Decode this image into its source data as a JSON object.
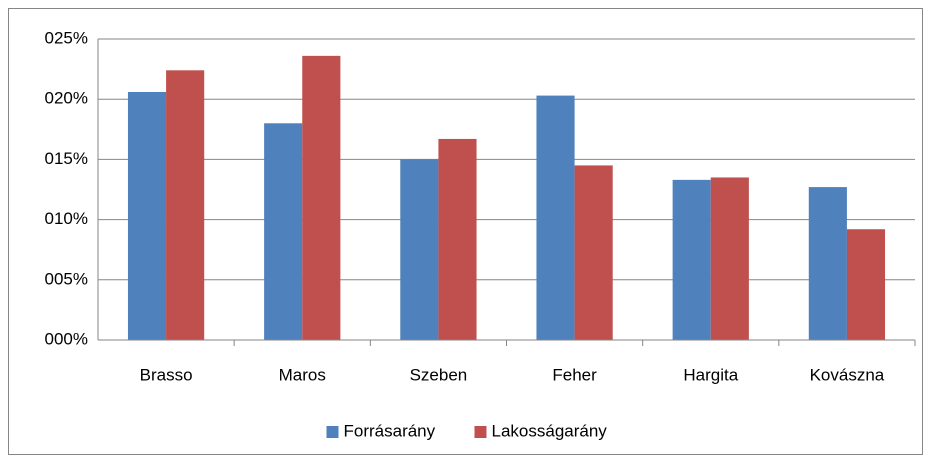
{
  "chart_data": {
    "type": "bar",
    "categories": [
      "Brasso",
      "Maros",
      "Szeben",
      "Feher",
      "Hargita",
      "Kovászna"
    ],
    "series": [
      {
        "name": "Forrásarány",
        "color": "#4f81bd",
        "values": [
          20.6,
          18.0,
          15.0,
          20.3,
          13.3,
          12.7
        ]
      },
      {
        "name": "Lakosságarány",
        "color": "#c0504d",
        "values": [
          22.4,
          23.6,
          16.7,
          14.5,
          13.5,
          9.2
        ]
      }
    ],
    "ylim": [
      0,
      25
    ],
    "yticks": [
      {
        "value": 0,
        "label": "000%"
      },
      {
        "value": 5,
        "label": "005%"
      },
      {
        "value": 10,
        "label": "010%"
      },
      {
        "value": 15,
        "label": "015%"
      },
      {
        "value": 20,
        "label": "020%"
      },
      {
        "value": 25,
        "label": "025%"
      }
    ],
    "grid": true,
    "legend": "bottom"
  }
}
